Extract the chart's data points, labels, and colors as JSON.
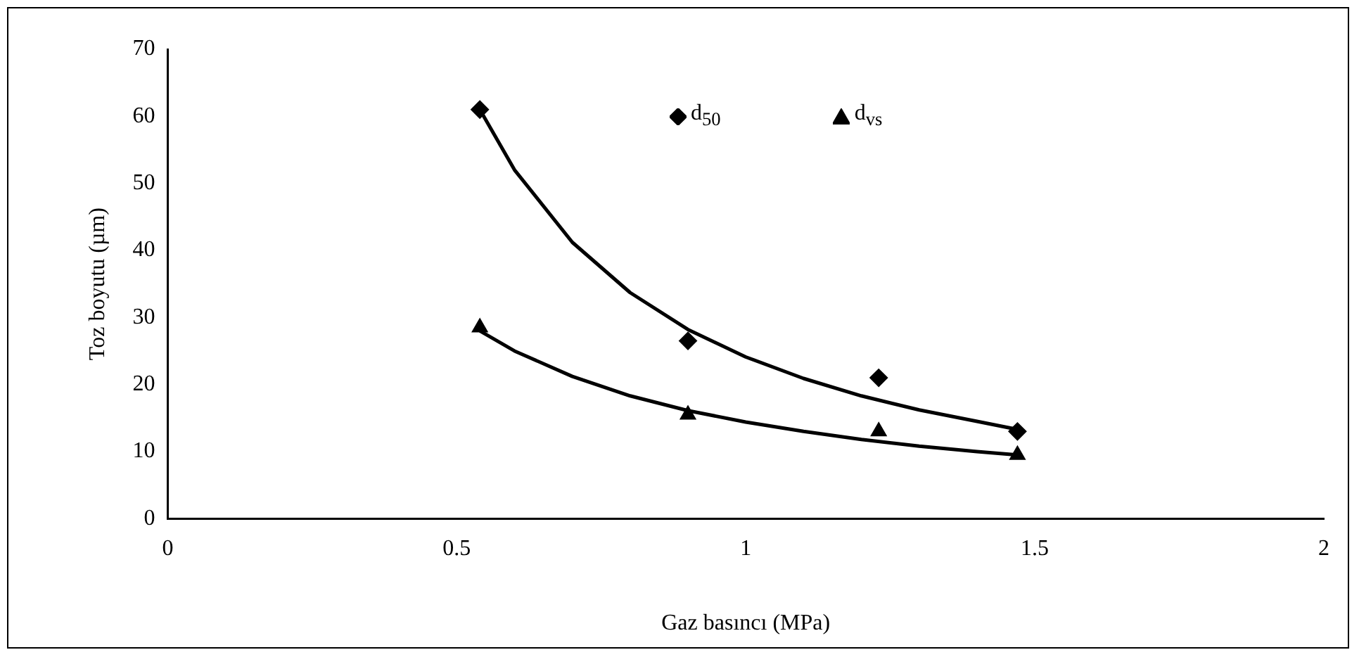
{
  "chart_data": {
    "type": "scatter",
    "xlabel": "Gaz basıncı (MPa)",
    "ylabel": "Toz boyutu (µm)",
    "xlim": [
      0,
      2
    ],
    "xticks": [
      0,
      0.5,
      1,
      1.5,
      2
    ],
    "ylim": [
      0,
      70
    ],
    "yticks": [
      0,
      10,
      20,
      30,
      40,
      50,
      60,
      70
    ],
    "grid": false,
    "legend": "top",
    "series": [
      {
        "name": "d$_{50}$",
        "type": "scatter",
        "marker": "diamond",
        "color": "#000000",
        "x": [
          0.54,
          0.9,
          1.23,
          1.47
        ],
        "values": [
          61,
          26.5,
          21,
          13
        ]
      },
      {
        "name": "d$_{vs}$",
        "type": "scatter",
        "marker": "triangle",
        "color": "#000000",
        "x": [
          0.54,
          0.9,
          1.23,
          1.47
        ],
        "values": [
          28.5,
          15.5,
          13,
          9.5
        ]
      },
      {
        "type": "line",
        "marker": "none",
        "color": "#000000",
        "x": [
          0.54,
          0.6,
          0.7,
          0.8,
          0.9,
          1.0,
          1.1,
          1.2,
          1.3,
          1.4,
          1.47
        ],
        "values": [
          61,
          52,
          41.2,
          33.7,
          28.2,
          24.1,
          20.9,
          18.3,
          16.2,
          14.5,
          13.3
        ]
      },
      {
        "type": "line",
        "marker": "none",
        "color": "#000000",
        "x": [
          0.54,
          0.6,
          0.7,
          0.8,
          0.9,
          1.0,
          1.1,
          1.2,
          1.3,
          1.4,
          1.47
        ],
        "values": [
          28,
          25,
          21.2,
          18.3,
          16.1,
          14.4,
          13,
          11.8,
          10.8,
          10,
          9.5
        ]
      }
    ]
  }
}
